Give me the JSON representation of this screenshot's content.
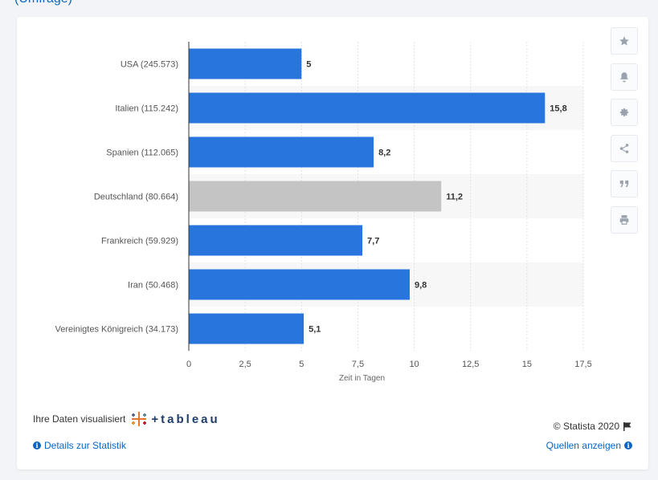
{
  "chart_data": {
    "type": "bar",
    "orientation": "horizontal",
    "categories": [
      "USA (245.573)",
      "Italien (115.242)",
      "Spanien (112.065)",
      "Deutschland (80.664)",
      "Frankreich (59.929)",
      "Iran (50.468)",
      "Vereinigtes Königreich (34.173)"
    ],
    "values": [
      5,
      15.8,
      8.2,
      11.2,
      7.7,
      9.8,
      5.1
    ],
    "value_labels": [
      "5",
      "15,8",
      "8,2",
      "11,2",
      "7,7",
      "9,8",
      "5,1"
    ],
    "highlight_index": 3,
    "xlabel": "Zeit in Tagen",
    "xlim": [
      0,
      17.5
    ],
    "x_ticks": [
      0,
      2.5,
      5,
      7.5,
      10,
      12.5,
      15,
      17.5
    ],
    "x_tick_labels": [
      "0",
      "2,5",
      "5",
      "7,5",
      "10",
      "12,5",
      "15",
      "17,5"
    ],
    "colors": {
      "bar": "#2876dd",
      "highlight": "#c4c4c4",
      "band": "#f7f7f7",
      "grid": "#e2e2e2"
    }
  },
  "tools": [
    {
      "icon": "star-icon"
    },
    {
      "icon": "bell-icon"
    },
    {
      "icon": "gear-icon"
    },
    {
      "icon": "share-icon"
    },
    {
      "icon": "quote-icon"
    },
    {
      "icon": "print-icon"
    }
  ],
  "footer": {
    "viz_label": "Ihre Daten visualisiert",
    "tableau_word": "tableau",
    "tableau_mark": "+",
    "details_link": "Details zur Statistik",
    "copyright": "© Statista 2020",
    "sources_link": "Quellen anzeigen",
    "info_glyph": "i"
  },
  "top_link": "(Umfrage)"
}
